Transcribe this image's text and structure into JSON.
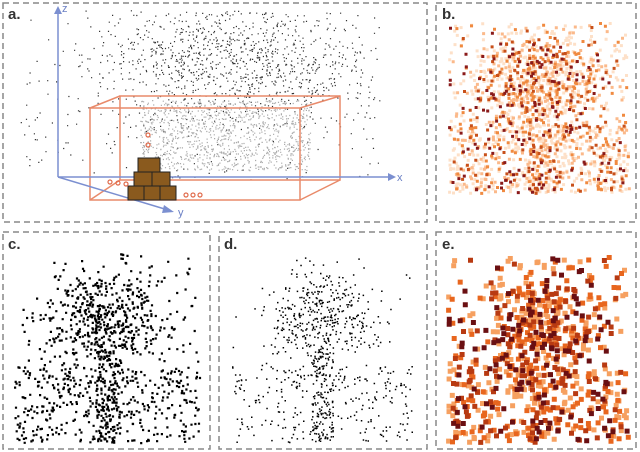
{
  "panels": [
    {
      "label": "a."
    },
    {
      "label": "b."
    },
    {
      "label": "c."
    },
    {
      "label": "d."
    },
    {
      "label": "e."
    }
  ],
  "axes": {
    "x": "x",
    "y": "y",
    "z": "z"
  }
}
